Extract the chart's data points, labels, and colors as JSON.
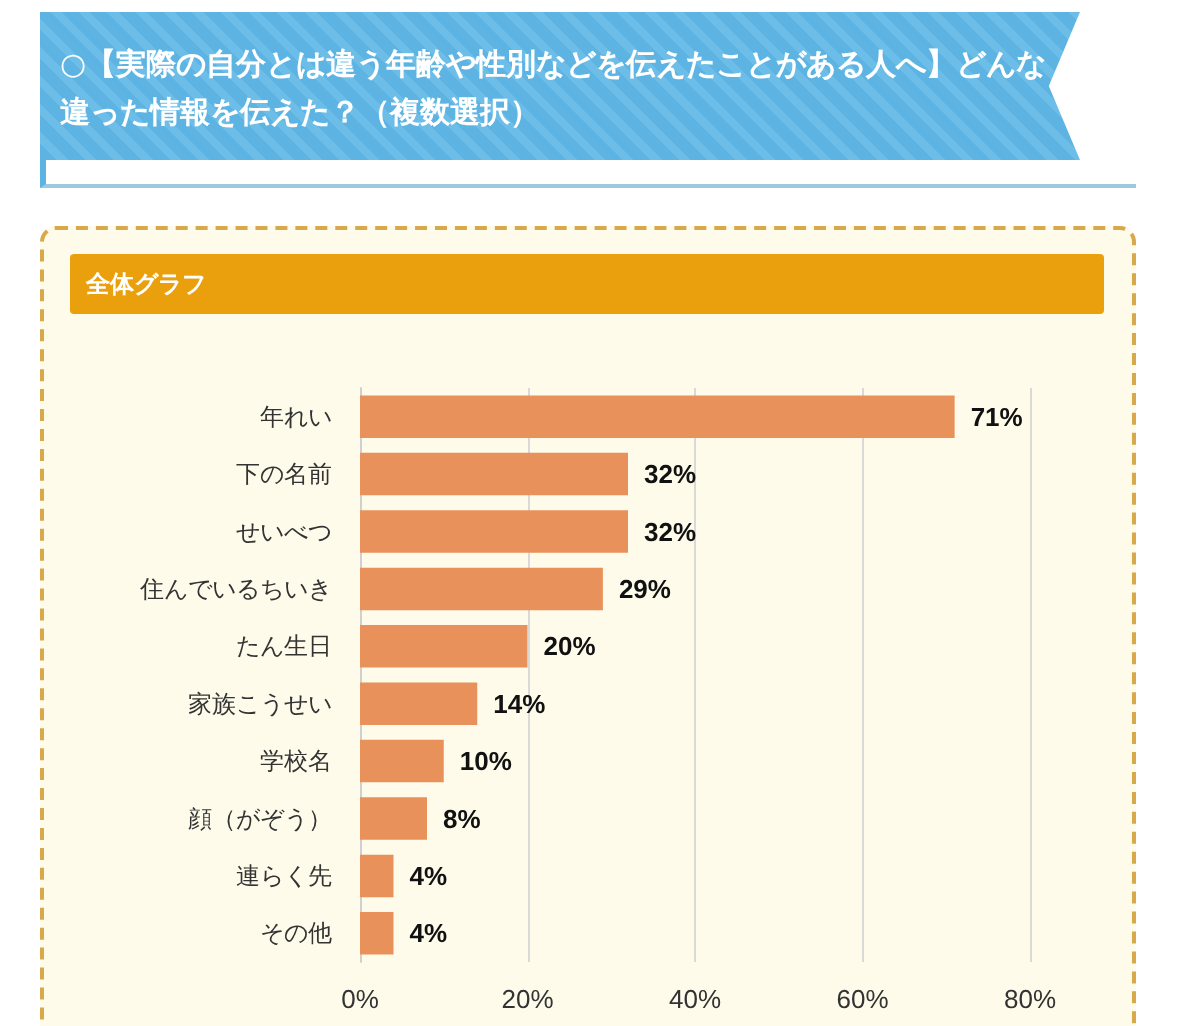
{
  "chart_data": {
    "type": "bar",
    "orientation": "horizontal",
    "title": "○【実際の自分とは違う年齢や性別などを伝えたことがある人へ】どんな違った情報を伝えた？（複数選択）",
    "subtitle": "全体グラフ",
    "categories": [
      "年れい",
      "下の名前",
      "せいべつ",
      "住んでいるちいき",
      "たん生日",
      "家族こうせい",
      "学校名",
      "顔（がぞう）",
      "連らく先",
      "その他"
    ],
    "values": [
      71,
      32,
      32,
      29,
      20,
      14,
      10,
      8,
      4,
      4
    ],
    "value_labels": [
      "71%",
      "32%",
      "32%",
      "29%",
      "20%",
      "14%",
      "10%",
      "8%",
      "4%",
      "4%"
    ],
    "color": "#e8915a",
    "xlim": [
      0,
      80
    ],
    "xticks": [
      {
        "value": 0,
        "label": "0%"
      },
      {
        "value": 20,
        "label": "20%"
      },
      {
        "value": 40,
        "label": "40%"
      },
      {
        "value": 60,
        "label": "60%"
      },
      {
        "value": 80,
        "label": "80%"
      }
    ],
    "grid": "x"
  }
}
